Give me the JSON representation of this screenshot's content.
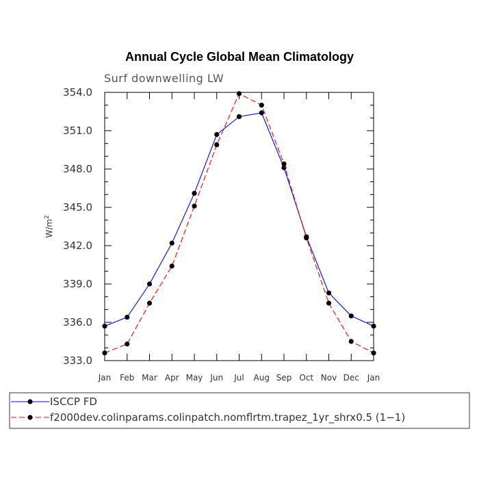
{
  "chart_data": {
    "type": "line",
    "title": "Annual Cycle Global Mean Climatology",
    "subtitle": "Surf downwelling LW",
    "ylabel": "W/m",
    "ylabel_sup": "2",
    "xlabel": "",
    "categories": [
      "Jan",
      "Feb",
      "Mar",
      "Apr",
      "May",
      "Jun",
      "Jul",
      "Aug",
      "Sep",
      "Oct",
      "Nov",
      "Dec",
      "Jan"
    ],
    "ylim": [
      333.0,
      354.0
    ],
    "yticks": [
      "333.0",
      "336.0",
      "339.0",
      "342.0",
      "345.0",
      "348.0",
      "351.0",
      "354.0"
    ],
    "series": [
      {
        "name": "ISCCP FD",
        "color": "#0000ff",
        "dash": "solid",
        "values": [
          335.7,
          336.4,
          339.0,
          342.2,
          346.1,
          350.7,
          352.1,
          352.4,
          348.1,
          342.7,
          338.3,
          336.5,
          335.7
        ]
      },
      {
        "name": "f2000dev.colinparams.colinpatch.nomflrtm.trapez_1yr_shrx0.5 (1−1)",
        "color": "#ff0000",
        "dash": "dashed",
        "values": [
          333.6,
          334.3,
          337.5,
          340.4,
          345.1,
          349.9,
          353.9,
          353.0,
          348.4,
          342.6,
          337.5,
          334.5,
          333.6
        ]
      }
    ],
    "grid": false,
    "legend": "bottom"
  }
}
